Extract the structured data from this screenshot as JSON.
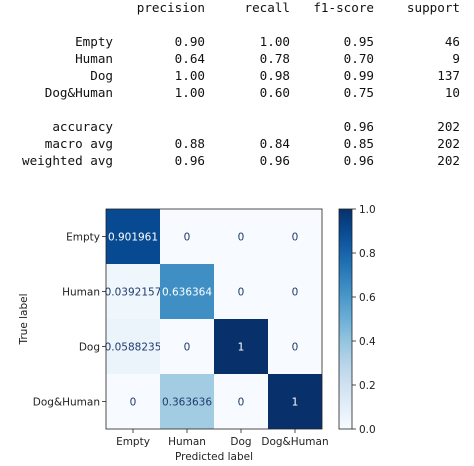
{
  "report": {
    "headers": [
      "precision",
      "recall",
      "f1-score",
      "support"
    ],
    "rows": [
      {
        "label": "Empty",
        "precision": "0.90",
        "recall": "1.00",
        "f1": "0.95",
        "support": "46"
      },
      {
        "label": "Human",
        "precision": "0.64",
        "recall": "0.78",
        "f1": "0.70",
        "support": "9"
      },
      {
        "label": "Dog",
        "precision": "1.00",
        "recall": "0.98",
        "f1": "0.99",
        "support": "137"
      },
      {
        "label": "Dog&Human",
        "precision": "1.00",
        "recall": "0.60",
        "f1": "0.75",
        "support": "10"
      }
    ],
    "summary": [
      {
        "label": "accuracy",
        "precision": "",
        "recall": "",
        "f1": "0.96",
        "support": "202"
      },
      {
        "label": "macro avg",
        "precision": "0.88",
        "recall": "0.84",
        "f1": "0.85",
        "support": "202"
      },
      {
        "label": "weighted avg",
        "precision": "0.96",
        "recall": "0.96",
        "f1": "0.96",
        "support": "202"
      }
    ]
  },
  "chart_data": {
    "type": "heatmap",
    "title": "",
    "xlabel": "Predicted label",
    "ylabel": "True label",
    "x_categories": [
      "Empty",
      "Human",
      "Dog",
      "Dog&Human"
    ],
    "y_categories": [
      "Empty",
      "Human",
      "Dog",
      "Dog&Human"
    ],
    "values": [
      [
        0.901961,
        0,
        0,
        0
      ],
      [
        0.0392157,
        0.636364,
        0,
        0
      ],
      [
        0.0588235,
        0,
        1,
        0
      ],
      [
        0,
        0.363636,
        0,
        1
      ]
    ],
    "cell_labels": [
      [
        "0.901961",
        "0",
        "0",
        "0"
      ],
      [
        "0.0392157",
        "0.636364",
        "0",
        "0"
      ],
      [
        "0.0588235",
        "0",
        "1",
        "0"
      ],
      [
        "0",
        "0.363636",
        "0",
        "1"
      ]
    ],
    "colormap": "Blues",
    "colorbar": {
      "range": [
        0.0,
        1.0
      ],
      "ticks": [
        "0.0",
        "0.2",
        "0.4",
        "0.6",
        "0.8",
        "1.0"
      ]
    }
  }
}
